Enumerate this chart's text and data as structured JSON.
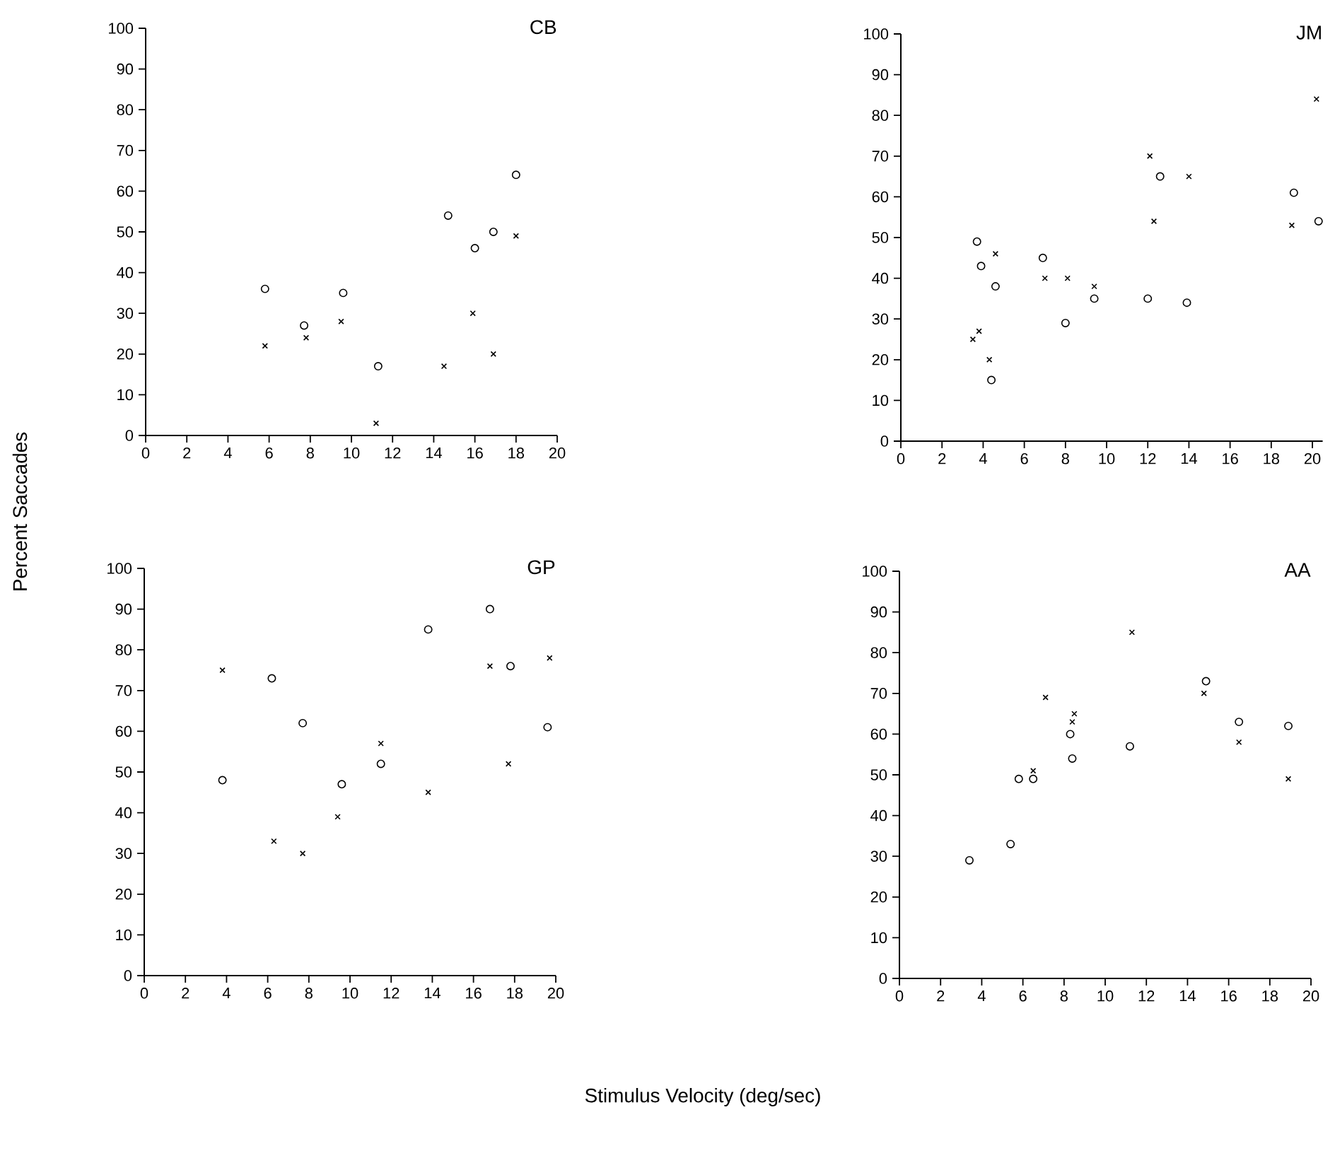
{
  "chart_data": [
    {
      "type": "scatter",
      "title": "CB",
      "ylabel": "Percent Saccades",
      "xlim": [
        0,
        20
      ],
      "ylim": [
        0,
        100
      ],
      "xticks": [
        0,
        2,
        4,
        6,
        8,
        10,
        12,
        14,
        16,
        18,
        20
      ],
      "yticks": [
        0,
        10,
        20,
        30,
        40,
        50,
        60,
        70,
        80,
        90,
        100
      ],
      "series": [
        {
          "color": "#000000",
          "marker": "circle",
          "x": [
            5.8,
            7.7,
            9.6,
            11.3,
            14.7,
            16.0,
            16.9,
            18.0
          ],
          "values": [
            36,
            27,
            35,
            17,
            54,
            46,
            50,
            64
          ]
        },
        {
          "color": "#000000",
          "marker": "cross",
          "x": [
            5.8,
            7.8,
            9.5,
            11.2,
            14.5,
            15.9,
            16.9,
            18.0
          ],
          "values": [
            22,
            24,
            28,
            3,
            17,
            30,
            20,
            49
          ]
        }
      ]
    },
    {
      "type": "scatter",
      "title": "JM",
      "xlim": [
        0,
        20.5
      ],
      "ylim": [
        0,
        100
      ],
      "xticks": [
        0,
        2,
        4,
        6,
        8,
        10,
        12,
        14,
        16,
        18,
        20
      ],
      "yticks": [
        0,
        10,
        20,
        30,
        40,
        50,
        60,
        70,
        80,
        90,
        100
      ],
      "series": [
        {
          "color": "#000000",
          "marker": "circle",
          "x": [
            3.7,
            3.9,
            4.6,
            4.4,
            6.9,
            8.0,
            9.4,
            12.0,
            12.6,
            13.9,
            19.1,
            20.3
          ],
          "values": [
            49,
            43,
            38,
            15,
            45,
            29,
            35,
            35,
            65,
            34,
            61,
            54
          ]
        },
        {
          "color": "#000000",
          "marker": "cross",
          "x": [
            3.5,
            3.8,
            4.3,
            4.6,
            7.0,
            8.1,
            9.4,
            12.1,
            12.3,
            14.0,
            19.0,
            20.2
          ],
          "values": [
            25,
            27,
            20,
            46,
            40,
            40,
            38,
            70,
            54,
            65,
            53,
            84
          ]
        }
      ]
    },
    {
      "type": "scatter",
      "title": "GP",
      "xlabel": "Stimulus Velocity (deg/sec)",
      "xlim": [
        0,
        20
      ],
      "ylim": [
        0,
        100
      ],
      "xticks": [
        0,
        2,
        4,
        6,
        8,
        10,
        12,
        14,
        16,
        18,
        20
      ],
      "yticks": [
        0,
        10,
        20,
        30,
        40,
        50,
        60,
        70,
        80,
        90,
        100
      ],
      "series": [
        {
          "color": "#000000",
          "marker": "circle",
          "x": [
            3.8,
            6.2,
            7.7,
            9.6,
            11.5,
            13.8,
            16.8,
            17.8,
            19.6
          ],
          "values": [
            48,
            73,
            62,
            47,
            52,
            85,
            90,
            76,
            61
          ]
        },
        {
          "color": "#000000",
          "marker": "cross",
          "x": [
            3.8,
            6.3,
            7.7,
            9.4,
            11.5,
            13.8,
            16.8,
            17.7,
            19.7
          ],
          "values": [
            75,
            33,
            30,
            39,
            57,
            45,
            76,
            52,
            78
          ]
        }
      ]
    },
    {
      "type": "scatter",
      "title": "AA",
      "xlim": [
        0,
        20
      ],
      "ylim": [
        0,
        100
      ],
      "xticks": [
        0,
        2,
        4,
        6,
        8,
        10,
        12,
        14,
        16,
        18,
        20
      ],
      "yticks": [
        0,
        10,
        20,
        30,
        40,
        50,
        60,
        70,
        80,
        90,
        100
      ],
      "series": [
        {
          "color": "#000000",
          "marker": "circle",
          "x": [
            3.4,
            5.4,
            5.8,
            6.5,
            8.3,
            8.4,
            11.2,
            14.9,
            16.5,
            18.9
          ],
          "values": [
            29,
            33,
            49,
            49,
            60,
            54,
            57,
            73,
            63,
            62
          ]
        },
        {
          "color": "#000000",
          "marker": "cross",
          "x": [
            6.5,
            7.1,
            8.4,
            8.5,
            11.3,
            14.8,
            16.5,
            18.9
          ],
          "values": [
            51,
            69,
            63,
            65,
            85,
            70,
            58,
            49
          ]
        }
      ]
    }
  ]
}
